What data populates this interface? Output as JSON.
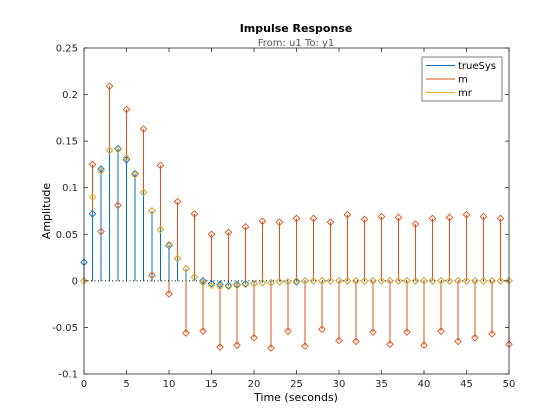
{
  "chart_data": {
    "type": "stem",
    "title": "Impulse Response",
    "subtitle": "From: u1  To: y1",
    "xlabel": "Time (seconds)",
    "ylabel": "Amplitude",
    "xlim": [
      0,
      50
    ],
    "ylim": [
      -0.1,
      0.25
    ],
    "xticks": [
      0,
      5,
      10,
      15,
      20,
      25,
      30,
      35,
      40,
      45,
      50
    ],
    "yticks": [
      -0.1,
      -0.05,
      0,
      0.05,
      0.1,
      0.15,
      0.2,
      0.25
    ],
    "ytick_labels": [
      "-0.1",
      "-0.05",
      "0",
      "0.05",
      "0.1",
      "0.15",
      "0.2",
      "0.25"
    ],
    "legend_position": "top-right",
    "grid": false,
    "series": [
      {
        "name": "trueSys",
        "color": "#0072BD",
        "x": [
          0,
          1,
          2,
          3,
          4,
          5,
          6,
          7,
          8,
          9,
          10,
          11,
          12,
          13,
          14,
          15,
          16,
          17,
          18,
          19,
          20,
          21,
          22,
          23,
          24,
          25,
          26,
          27,
          28,
          29,
          30,
          31,
          32,
          33,
          34,
          35,
          36,
          37,
          38,
          39,
          40,
          41,
          42,
          43,
          44,
          45,
          46,
          47,
          48,
          49,
          50
        ],
        "values": [
          0.02,
          0.072,
          0.12,
          0.14,
          0.142,
          0.13,
          0.115,
          0.095,
          0.075,
          0.055,
          0.038,
          0.024,
          0.013,
          0.004,
          0.0,
          -0.003,
          -0.004,
          -0.005,
          -0.004,
          -0.003,
          -0.003,
          -0.002,
          -0.002,
          -0.001,
          -0.001,
          -0.001,
          0.0,
          0.0,
          0.0,
          0.0,
          0.0,
          0.0,
          0.0,
          0.0,
          0.0,
          0.0,
          0.0,
          0.0,
          0.0,
          0.0,
          0.0,
          0.0,
          0.0,
          0.0,
          0.0,
          0.0,
          0.0,
          0.0,
          0.0,
          0.0,
          0.0
        ]
      },
      {
        "name": "m",
        "color": "#D95319",
        "x": [
          0,
          1,
          2,
          3,
          4,
          5,
          6,
          7,
          8,
          9,
          10,
          11,
          12,
          13,
          14,
          15,
          16,
          17,
          18,
          19,
          20,
          21,
          22,
          23,
          24,
          25,
          26,
          27,
          28,
          29,
          30,
          31,
          32,
          33,
          34,
          35,
          36,
          37,
          38,
          39,
          40,
          41,
          42,
          43,
          44,
          45,
          46,
          47,
          48,
          49,
          50
        ],
        "values": [
          0.0,
          0.125,
          0.053,
          0.209,
          0.081,
          0.184,
          0.114,
          0.163,
          0.006,
          0.124,
          -0.014,
          0.085,
          -0.056,
          0.072,
          -0.054,
          0.05,
          -0.071,
          0.052,
          -0.069,
          0.058,
          -0.061,
          0.064,
          -0.072,
          0.063,
          -0.054,
          0.067,
          -0.07,
          0.067,
          -0.052,
          0.063,
          -0.064,
          0.071,
          -0.065,
          0.066,
          -0.055,
          0.069,
          -0.068,
          0.068,
          -0.055,
          0.061,
          -0.069,
          0.067,
          -0.054,
          0.068,
          -0.065,
          0.071,
          -0.061,
          0.069,
          -0.057,
          0.067,
          -0.068
        ]
      },
      {
        "name": "mr",
        "color": "#EDB120",
        "x": [
          0,
          1,
          2,
          3,
          4,
          5,
          6,
          7,
          8,
          9,
          10,
          11,
          12,
          13,
          14,
          15,
          16,
          17,
          18,
          19,
          20,
          21,
          22,
          23,
          24,
          25,
          26,
          27,
          28,
          29,
          30,
          31,
          32,
          33,
          34,
          35,
          36,
          37,
          38,
          39,
          40,
          41,
          42,
          43,
          44,
          45,
          46,
          47,
          48,
          49,
          50
        ],
        "values": [
          0.0,
          0.09,
          0.118,
          0.14,
          0.141,
          0.132,
          0.114,
          0.095,
          0.075,
          0.055,
          0.039,
          0.024,
          0.013,
          0.004,
          -0.002,
          -0.005,
          -0.006,
          -0.006,
          -0.005,
          -0.004,
          -0.003,
          -0.002,
          -0.002,
          -0.001,
          -0.001,
          0.0,
          0.0,
          0.0,
          0.0,
          0.0,
          0.0,
          0.0,
          0.0,
          0.0,
          0.0,
          0.0,
          0.0,
          0.0,
          0.0,
          0.0,
          0.0,
          0.0,
          0.0,
          0.0,
          0.0,
          0.0,
          0.0,
          0.0,
          0.0,
          0.0,
          0.0
        ]
      }
    ]
  }
}
